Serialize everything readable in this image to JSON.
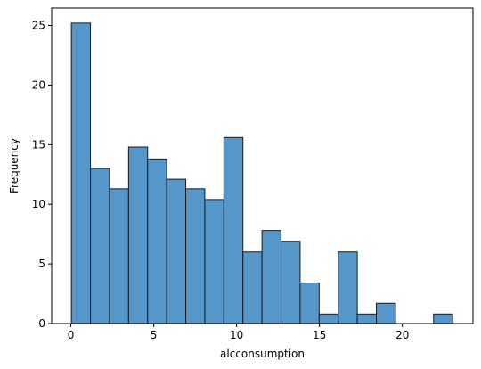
{
  "chart_data": {
    "type": "bar",
    "xlabel": "alcconsumption",
    "ylabel": "Frequency",
    "xlim": [
      -1.16,
      24.26
    ],
    "ylim": [
      0,
      26.46
    ],
    "bin_width": 1.15,
    "bin_start": 0.03,
    "values": [
      25.2,
      13.0,
      11.3,
      14.8,
      13.8,
      12.1,
      11.3,
      10.4,
      15.6,
      6.0,
      7.8,
      6.9,
      3.4,
      0.8,
      6.0,
      0.8,
      1.7,
      0,
      0,
      0.8
    ],
    "x_ticks": [
      0,
      5,
      10,
      15,
      20
    ],
    "y_ticks": [
      0,
      5,
      10,
      15,
      20,
      25
    ],
    "bar_color": "#5497c8",
    "edge_color": "#1a1a1a",
    "grid": false
  }
}
